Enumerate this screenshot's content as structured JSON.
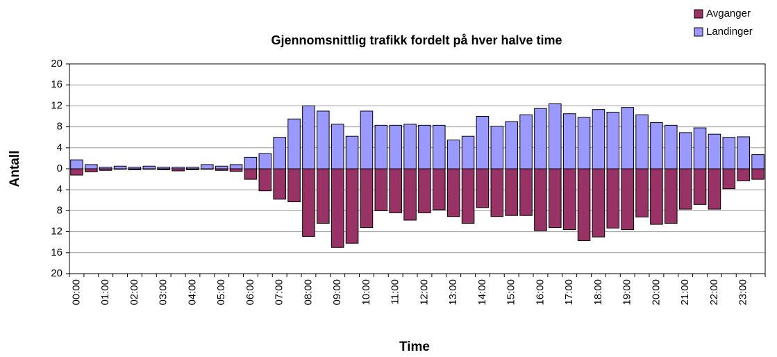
{
  "chart_data": {
    "type": "bar",
    "title": "Gjennomsnittlig trafikk fordelt på hver halve time",
    "x_label": "Time",
    "y_label": "Antall",
    "categories": [
      "00:00",
      null,
      "01:00",
      null,
      "02:00",
      null,
      "03:00",
      null,
      "04:00",
      null,
      "05:00",
      null,
      "06:00",
      null,
      "07:00",
      null,
      "08:00",
      null,
      "09:00",
      null,
      "10:00",
      null,
      "11:00",
      null,
      "12:00",
      null,
      "13:00",
      null,
      "14:00",
      null,
      "15:00",
      null,
      "16:00",
      null,
      "17:00",
      null,
      "18:00",
      null,
      "19:00",
      null,
      "20:00",
      null,
      "21:00",
      null,
      "22:00",
      null,
      "23:00",
      null
    ],
    "series": [
      {
        "name": "Avganger",
        "color": "#993366",
        "values": [
          -1.2,
          -0.6,
          -0.3,
          -0.1,
          -0.2,
          -0.1,
          -0.2,
          -0.4,
          -0.2,
          -0.1,
          -0.3,
          -0.5,
          -2,
          -4.2,
          -5.8,
          -6.3,
          -12.9,
          -10.4,
          -15,
          -14.2,
          -11.2,
          -8,
          -8.4,
          -9.8,
          -8.4,
          -7.8,
          -9.1,
          -10.4,
          -7.4,
          -9.1,
          -8.9,
          -8.9,
          -11.8,
          -11.2,
          -11.6,
          -13.7,
          -13,
          -11.3,
          -11.6,
          -9.2,
          -10.6,
          -10.4,
          -7.7,
          -6.8,
          -7.7,
          -3.8,
          -2.3,
          -2
        ]
      },
      {
        "name": "Landinger",
        "color": "#9999ff",
        "values": [
          1.7,
          0.8,
          0.3,
          0.5,
          0.3,
          0.5,
          0.3,
          0.3,
          0.3,
          0.8,
          0.5,
          0.8,
          2.2,
          2.9,
          6,
          9.5,
          12,
          11,
          8.5,
          6.2,
          11,
          8.3,
          8.3,
          8.5,
          8.3,
          8.3,
          5.5,
          6.2,
          10,
          8.1,
          9,
          10.3,
          11.5,
          12.4,
          10.5,
          9.8,
          11.3,
          10.8,
          11.7,
          10.3,
          8.8,
          8.3,
          6.9,
          7.8,
          6.6,
          6,
          6.1,
          2.7
        ]
      }
    ],
    "ylim": [
      -20,
      20
    ],
    "yticks": [
      20,
      16,
      12,
      8,
      4,
      0,
      {
        "value": -4,
        "label": "4"
      },
      {
        "value": -8,
        "label": "8"
      },
      {
        "value": -12,
        "label": "12"
      },
      {
        "value": -16,
        "label": "16"
      },
      {
        "value": -20,
        "label": "20"
      }
    ],
    "grid": true,
    "legend": "top-right"
  }
}
